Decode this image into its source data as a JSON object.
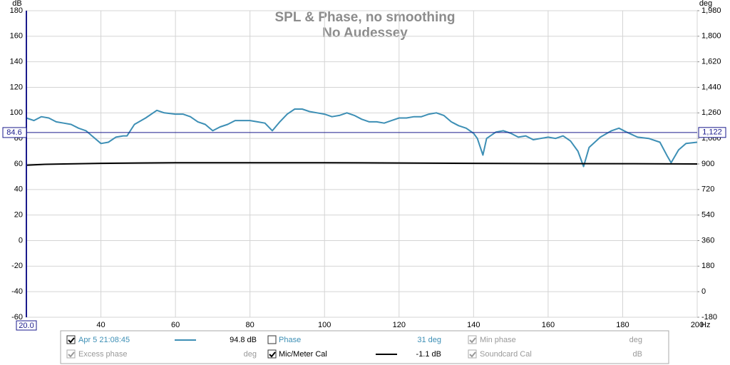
{
  "chart_data": {
    "type": "line",
    "title": "SPL & Phase, no smoothing",
    "subtitle": "No Audessey",
    "y_unit": "dB",
    "y2_unit": "deg",
    "x_unit": "Hz",
    "xlim": [
      20,
      200
    ],
    "xticks": [
      40,
      60,
      80,
      100,
      120,
      140,
      160,
      180,
      200
    ],
    "ylim": [
      -60,
      180
    ],
    "yticks": [
      -60,
      -40,
      -20,
      0,
      20,
      40,
      60,
      80,
      100,
      120,
      140,
      160,
      180
    ],
    "y2lim": [
      -180,
      1980
    ],
    "y2ticks": [
      -180,
      0,
      180,
      360,
      540,
      720,
      900,
      {
        "value": 1080,
        "label": "1,080"
      },
      {
        "value": 1260,
        "label": "1,260"
      },
      {
        "value": 1440,
        "label": "1,440"
      },
      {
        "value": 1620,
        "label": "1,620"
      },
      {
        "value": 1800,
        "label": "1,800"
      },
      {
        "value": 1980,
        "label": "1,980"
      }
    ],
    "grid": true,
    "cursor": {
      "x": 20,
      "x_label": "20.0",
      "y": 84.6,
      "y2": 1122,
      "y2_label": "1,122"
    },
    "series": [
      {
        "name": "Apr 5 21:08:45",
        "color": "#3d8fb5",
        "checked": true,
        "readout": "94.8 dB",
        "x": [
          20,
          22,
          24,
          26,
          28,
          30,
          32,
          34,
          36,
          38,
          40,
          42,
          44,
          46,
          47,
          49,
          52,
          55,
          57,
          60,
          62,
          64,
          66,
          68,
          70,
          72,
          74,
          76,
          78,
          80,
          82,
          84,
          86,
          88,
          90,
          92,
          94,
          96,
          98,
          100,
          102,
          104,
          106,
          108,
          110,
          112,
          114,
          116,
          118,
          120,
          122,
          124,
          126,
          128,
          130,
          132,
          134,
          136,
          138,
          140,
          141,
          142.5,
          143.5,
          146,
          148,
          150,
          152,
          154,
          156,
          158,
          160,
          162,
          164,
          166,
          168,
          169.5,
          171,
          174,
          177,
          179,
          181,
          184,
          187,
          190,
          192,
          193,
          195,
          197,
          200
        ],
        "values": [
          96,
          94,
          97,
          96,
          93,
          92,
          91,
          88,
          86,
          81,
          76,
          77,
          81,
          82,
          82,
          91,
          96,
          102,
          100,
          99,
          99,
          97,
          93,
          91,
          86,
          89,
          91,
          94,
          94,
          94,
          93,
          92,
          86,
          93,
          99,
          103,
          103,
          101,
          100,
          99,
          97,
          98,
          100,
          98,
          95,
          93,
          93,
          92,
          94,
          96,
          96,
          97,
          97,
          99,
          100,
          98,
          93,
          90,
          88,
          84,
          80,
          67,
          80,
          85,
          86,
          84,
          81,
          82,
          79,
          80,
          81,
          80,
          82,
          78,
          70,
          58,
          73,
          81,
          86,
          88,
          85,
          81,
          80,
          77,
          66,
          61,
          71,
          76,
          77
        ]
      },
      {
        "name": "Mic/Meter Cal",
        "color": "#000000",
        "checked": true,
        "readout": "-1.1 dB",
        "x": [
          20,
          25,
          30,
          40,
          50,
          60,
          80,
          100,
          120,
          140,
          160,
          180,
          200
        ],
        "values": [
          59,
          59.7,
          60,
          60.5,
          60.8,
          61,
          61,
          61,
          60.8,
          60.5,
          60.3,
          60.2,
          60
        ]
      }
    ],
    "other_traces": [
      {
        "name": "Phase",
        "checked": false,
        "enabled": true,
        "readout": "31 deg"
      },
      {
        "name": "Min phase",
        "checked": true,
        "enabled": false,
        "readout": "deg"
      },
      {
        "name": "Excess phase",
        "checked": true,
        "enabled": false,
        "readout": "deg"
      },
      {
        "name": "Soundcard Cal",
        "checked": true,
        "enabled": false,
        "readout": "dB"
      }
    ]
  }
}
